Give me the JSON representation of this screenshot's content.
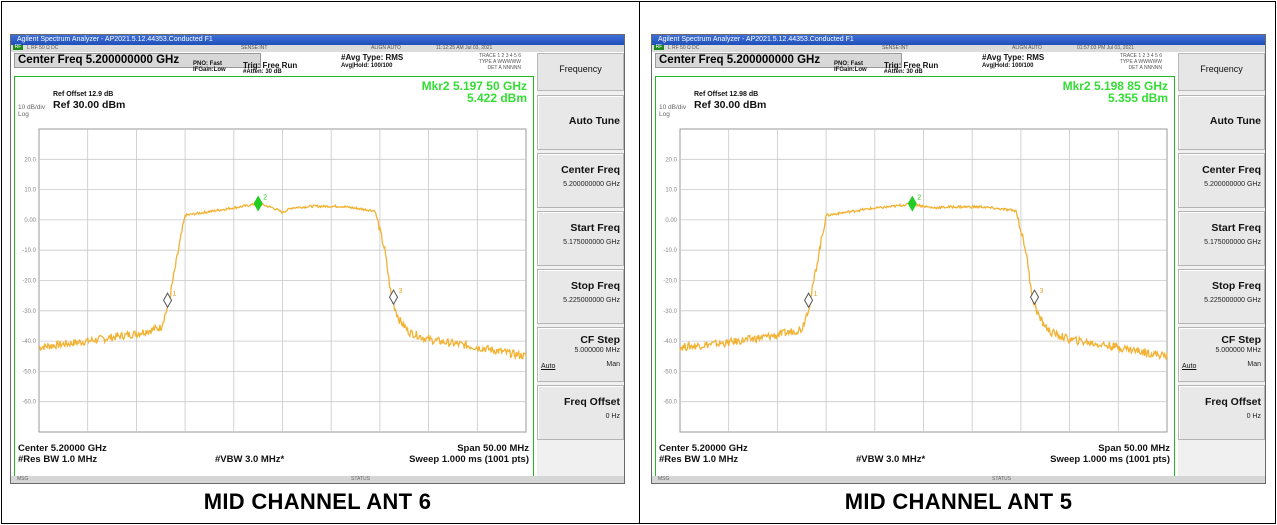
{
  "panels": [
    {
      "caption": "MID CHANNEL ANT 6",
      "titlebar": "Agilent Spectrum Analyzer - AP2021.5.12.44353.Conducted F1",
      "status_strip": {
        "rl": "RF",
        "left": "L      RF     50 Ω  DC",
        "mid": "SENSE:INT",
        "align": "ALIGN AUTO",
        "time": "11:12:25 AM Jul 03, 2021"
      },
      "center_freq": "Center Freq 5.200000000 GHz",
      "pno": "PNO: Fast",
      "ifgain": "IFGain:Low",
      "trig": "Trig: Free Run",
      "atten": "#Atten: 30 dB",
      "avg_type": "#Avg Type: RMS",
      "avg_hold": "Avg|Hold: 100/100",
      "trace_lines": [
        "TRACE 1 2 3 4 5 6",
        "TYPE A WWWWW",
        "DET A NNNNN"
      ],
      "ref_offset": "Ref Offset 12.9 dB",
      "ref_level": "Ref 30.00 dBm",
      "scale": "10 dB/div",
      "log": "Log",
      "mkr_freq": "Mkr2 5.197 50 GHz",
      "mkr_level": "5.422 dBm",
      "y_tick_labels": [
        "20.0",
        "10.0",
        "0.00",
        "-10.0",
        "-20.0",
        "-30.0",
        "-40.0",
        "-50.0",
        "-60.0"
      ],
      "bottom_left_1": "Center 5.20000 GHz",
      "bottom_left_2": "#Res BW 1.0 MHz",
      "bottom_mid": "#VBW 3.0 MHz*",
      "bottom_right_1": "Span 50.00 MHz",
      "bottom_right_2": "Sweep  1.000 ms (1001 pts)",
      "footer_left": "MSG",
      "footer_mid": "STATUS",
      "menu": {
        "title": "Frequency",
        "auto_tune": "Auto Tune",
        "center_freq_label": "Center Freq",
        "center_freq_value": "5.200000000 GHz",
        "start_freq_label": "Start Freq",
        "start_freq_value": "5.175000000 GHz",
        "stop_freq_label": "Stop Freq",
        "stop_freq_value": "5.225000000 GHz",
        "cf_step_label": "CF Step",
        "cf_step_value": "5.000000 MHz",
        "cf_step_auto": "Auto",
        "cf_step_man": "Man",
        "freq_offset_label": "Freq Offset",
        "freq_offset_value": "0 Hz"
      }
    },
    {
      "caption": "MID CHANNEL ANT 5",
      "titlebar": "Agilent Spectrum Analyzer - AP2021.5.12.44353.Conducted F1",
      "status_strip": {
        "rl": "RF",
        "left": "L      RF     50 Ω  DC",
        "mid": "SENSE:INT",
        "align": "ALIGN AUTO",
        "time": "01:57:03 PM Jul 03, 2021"
      },
      "center_freq": "Center Freq 5.200000000 GHz",
      "pno": "PNO: Fast",
      "ifgain": "IFGain:Low",
      "trig": "Trig: Free Run",
      "atten": "#Atten: 30 dB",
      "avg_type": "#Avg Type: RMS",
      "avg_hold": "Avg|Hold: 100/100",
      "trace_lines": [
        "TRACE 1 2 3 4 5 6",
        "TYPE A WWWWW",
        "DET A NNNNN"
      ],
      "ref_offset": "Ref Offset 12.98 dB",
      "ref_level": "Ref 30.00 dBm",
      "scale": "10 dB/div",
      "log": "Log",
      "mkr_freq": "Mkr2 5.198 85 GHz",
      "mkr_level": "5.355 dBm",
      "y_tick_labels": [
        "20.0",
        "10.0",
        "0.00",
        "-10.0",
        "-20.0",
        "-30.0",
        "-40.0",
        "-50.0",
        "-60.0"
      ],
      "bottom_left_1": "Center 5.20000 GHz",
      "bottom_left_2": "#Res BW 1.0 MHz",
      "bottom_mid": "#VBW 3.0 MHz*",
      "bottom_right_1": "Span 50.00 MHz",
      "bottom_right_2": "Sweep  1.000 ms (1001 pts)",
      "footer_left": "MSG",
      "footer_mid": "STATUS",
      "menu": {
        "title": "Frequency",
        "auto_tune": "Auto Tune",
        "center_freq_label": "Center Freq",
        "center_freq_value": "5.200000000 GHz",
        "start_freq_label": "Start Freq",
        "start_freq_value": "5.175000000 GHz",
        "stop_freq_label": "Stop Freq",
        "stop_freq_value": "5.225000000 GHz",
        "cf_step_label": "CF Step",
        "cf_step_value": "5.000000 MHz",
        "cf_step_auto": "Auto",
        "cf_step_man": "Man",
        "freq_offset_label": "Freq Offset",
        "freq_offset_value": "0 Hz"
      }
    }
  ],
  "chart_data": [
    {
      "type": "line",
      "x_unit": "MHz",
      "y_unit": "dBm",
      "xlim": [
        5175,
        5225
      ],
      "ylim": [
        -70,
        30
      ],
      "grid": true,
      "trace_color": "#f2b233",
      "series": [
        {
          "x": [
            5175,
            5180,
            5185,
            5187.5,
            5188.3,
            5189.2,
            5190,
            5194,
            5196,
            5197.5,
            5199,
            5200,
            5201,
            5203,
            5206,
            5209.5,
            5210.5,
            5211.2,
            5212,
            5213,
            5215,
            5220,
            5225
          ],
          "y": [
            -42,
            -40,
            -37.5,
            -35.5,
            -28,
            -12,
            1.5,
            3.5,
            4.5,
            5.4,
            4,
            2.5,
            4,
            4.5,
            4.5,
            3,
            -10,
            -26,
            -33,
            -37,
            -39.5,
            -42,
            -45
          ]
        }
      ],
      "markers": [
        {
          "label": "2",
          "x": 5197.5,
          "y": 5.422,
          "color": "#22cc22",
          "filled": true
        },
        {
          "label": "1",
          "x": 5188.2,
          "y": -26.5,
          "color": "#555555",
          "filled": false
        },
        {
          "label": "3",
          "x": 5211.4,
          "y": -25.5,
          "color": "#555555",
          "filled": false
        }
      ]
    },
    {
      "type": "line",
      "x_unit": "MHz",
      "y_unit": "dBm",
      "xlim": [
        5175,
        5225
      ],
      "ylim": [
        -70,
        30
      ],
      "grid": true,
      "trace_color": "#f2b233",
      "series": [
        {
          "x": [
            5175,
            5180,
            5185,
            5187.5,
            5188.3,
            5189.2,
            5190,
            5194,
            5197,
            5198.85,
            5200,
            5201,
            5203,
            5206,
            5209.5,
            5210.5,
            5211.2,
            5212,
            5213,
            5215,
            5220,
            5225
          ],
          "y": [
            -42,
            -40.5,
            -38,
            -36,
            -28,
            -12,
            1.5,
            3.5,
            4.5,
            5.355,
            4.5,
            4,
            4.3,
            4.3,
            3,
            -10,
            -26,
            -33,
            -37,
            -39.5,
            -42,
            -45
          ]
        }
      ],
      "markers": [
        {
          "label": "2",
          "x": 5198.85,
          "y": 5.355,
          "color": "#22cc22",
          "filled": true
        },
        {
          "label": "1",
          "x": 5188.2,
          "y": -26.5,
          "color": "#555555",
          "filled": false
        },
        {
          "label": "3",
          "x": 5211.4,
          "y": -25.5,
          "color": "#555555",
          "filled": false
        }
      ]
    }
  ]
}
